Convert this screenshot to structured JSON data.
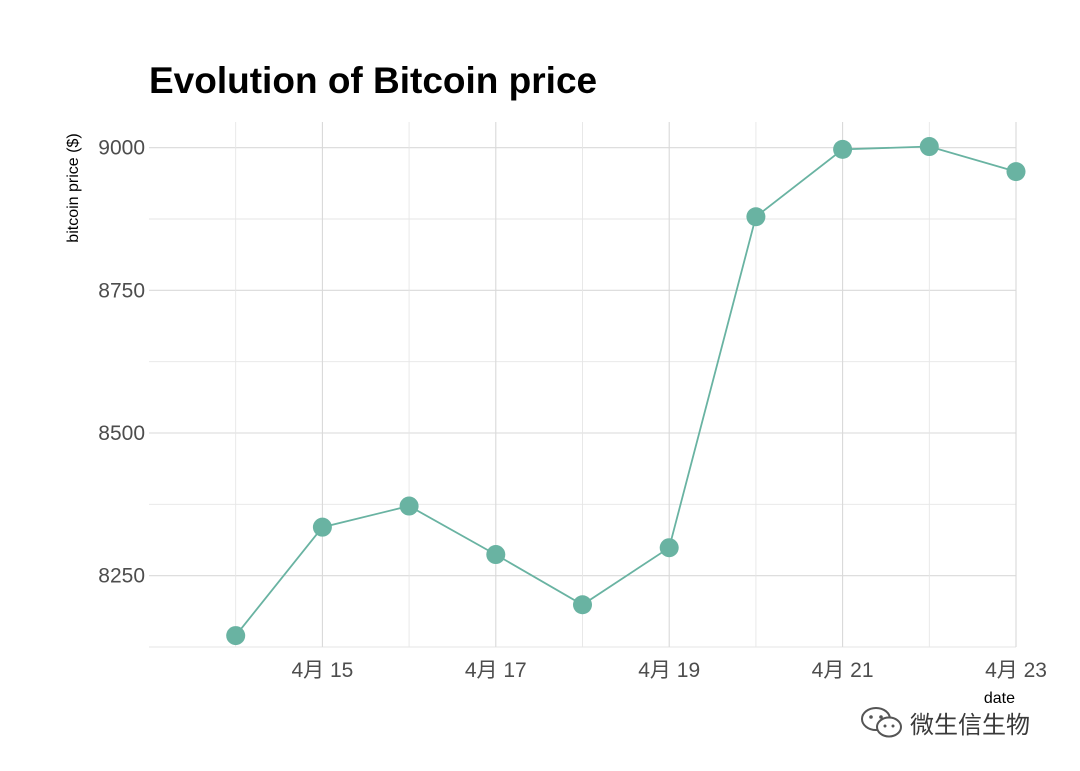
{
  "chart_data": {
    "type": "line",
    "title": "Evolution of Bitcoin price",
    "xlabel": "date",
    "ylabel": "bitcoin price ($)",
    "x": [
      "2020-04-14",
      "2020-04-15",
      "2020-04-16",
      "2020-04-17",
      "2020-04-18",
      "2020-04-19",
      "2020-04-20",
      "2020-04-21",
      "2020-04-22",
      "2020-04-23"
    ],
    "values": [
      8145,
      8335,
      8372,
      8287,
      8199,
      8299,
      8879,
      8997,
      9002,
      8958
    ],
    "x_ticks": [
      {
        "date": "2020-04-15",
        "label": "4月 15"
      },
      {
        "date": "2020-04-17",
        "label": "4月 17"
      },
      {
        "date": "2020-04-19",
        "label": "4月 19"
      },
      {
        "date": "2020-04-21",
        "label": "4月 21"
      },
      {
        "date": "2020-04-23",
        "label": "4月 23"
      }
    ],
    "y_ticks": [
      8250,
      8500,
      8750,
      9000
    ],
    "xlim": [
      "2020-04-13",
      "2020-04-23"
    ],
    "ylim": [
      8125,
      9045
    ],
    "grid": true,
    "legend": "none",
    "line_color": "#69b3a2",
    "point_color": "#69b3a2"
  },
  "watermark": {
    "icon": "wechat-icon",
    "text": "微生信生物"
  }
}
